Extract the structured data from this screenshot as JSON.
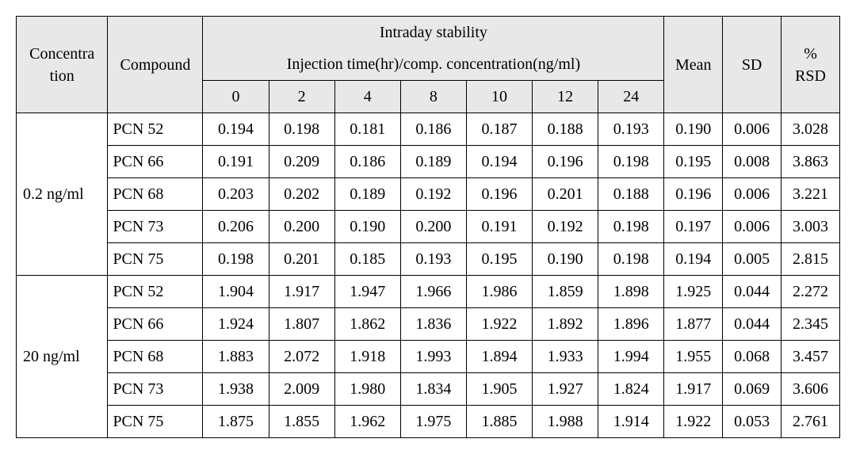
{
  "columns": {
    "concentration": "Concentra\ntion",
    "compound": "Compound",
    "intraday_top": "Intraday stability",
    "intraday_sub": "Injection time(hr)/comp. concentration(ng/ml)",
    "times": [
      "0",
      "2",
      "4",
      "8",
      "10",
      "12",
      "24"
    ],
    "mean": "Mean",
    "sd": "SD",
    "rsd": "%\nRSD"
  },
  "groups": [
    {
      "concentration": "0.2 ng/ml",
      "rows": [
        {
          "compound": "PCN 52",
          "v": [
            "0.194",
            "0.198",
            "0.181",
            "0.186",
            "0.187",
            "0.188",
            "0.193"
          ],
          "mean": "0.190",
          "sd": "0.006",
          "rsd": "3.028"
        },
        {
          "compound": "PCN 66",
          "v": [
            "0.191",
            "0.209",
            "0.186",
            "0.189",
            "0.194",
            "0.196",
            "0.198"
          ],
          "mean": "0.195",
          "sd": "0.008",
          "rsd": "3.863"
        },
        {
          "compound": "PCN 68",
          "v": [
            "0.203",
            "0.202",
            "0.189",
            "0.192",
            "0.196",
            "0.201",
            "0.188"
          ],
          "mean": "0.196",
          "sd": "0.006",
          "rsd": "3.221"
        },
        {
          "compound": "PCN 73",
          "v": [
            "0.206",
            "0.200",
            "0.190",
            "0.200",
            "0.191",
            "0.192",
            "0.198"
          ],
          "mean": "0.197",
          "sd": "0.006",
          "rsd": "3.003"
        },
        {
          "compound": "PCN 75",
          "v": [
            "0.198",
            "0.201",
            "0.185",
            "0.193",
            "0.195",
            "0.190",
            "0.198"
          ],
          "mean": "0.194",
          "sd": "0.005",
          "rsd": "2.815"
        }
      ]
    },
    {
      "concentration": "20 ng/ml",
      "rows": [
        {
          "compound": "PCN 52",
          "v": [
            "1.904",
            "1.917",
            "1.947",
            "1.966",
            "1.986",
            "1.859",
            "1.898"
          ],
          "mean": "1.925",
          "sd": "0.044",
          "rsd": "2.272"
        },
        {
          "compound": "PCN 66",
          "v": [
            "1.924",
            "1.807",
            "1.862",
            "1.836",
            "1.922",
            "1.892",
            "1.896"
          ],
          "mean": "1.877",
          "sd": "0.044",
          "rsd": "2.345"
        },
        {
          "compound": "PCN 68",
          "v": [
            "1.883",
            "2.072",
            "1.918",
            "1.993",
            "1.894",
            "1.933",
            "1.994"
          ],
          "mean": "1.955",
          "sd": "0.068",
          "rsd": "3.457"
        },
        {
          "compound": "PCN 73",
          "v": [
            "1.938",
            "2.009",
            "1.980",
            "1.834",
            "1.905",
            "1.927",
            "1.824"
          ],
          "mean": "1.917",
          "sd": "0.069",
          "rsd": "3.606"
        },
        {
          "compound": "PCN 75",
          "v": [
            "1.875",
            "1.855",
            "1.962",
            "1.975",
            "1.885",
            "1.988",
            "1.914"
          ],
          "mean": "1.922",
          "sd": "0.053",
          "rsd": "2.761"
        }
      ]
    }
  ],
  "style": {
    "header_bg": "#e8e8e8",
    "body_bg": "#ffffff",
    "border_color": "#000000",
    "font_family": "Times New Roman",
    "font_size_pt": 15
  }
}
